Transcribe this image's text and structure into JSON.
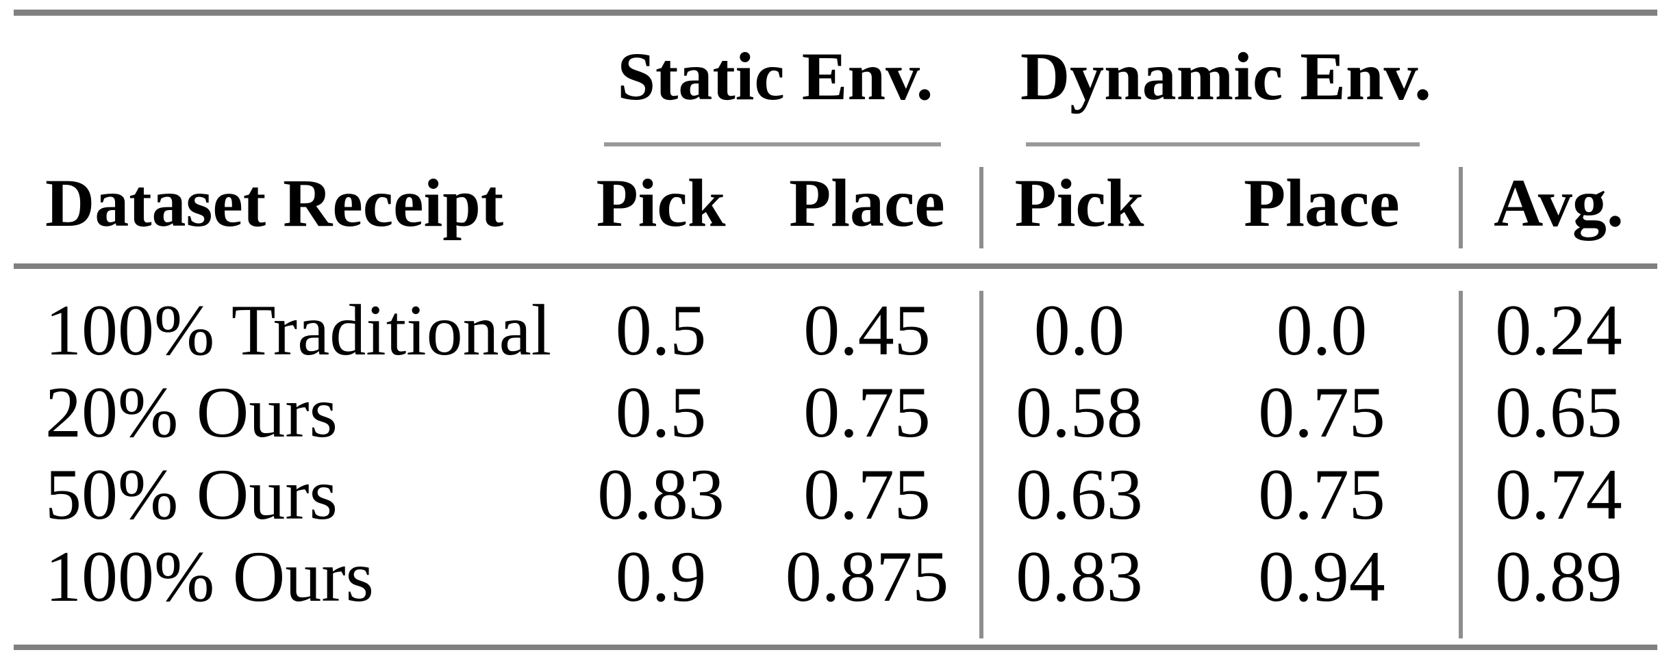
{
  "figure": {
    "background": "#ffffff",
    "rule_color": "#808080",
    "text_color": "#000000"
  },
  "header": {
    "row_label": "Dataset Receipt",
    "groups": [
      {
        "label": "Static Env.",
        "columns": [
          "Pick",
          "Place"
        ]
      },
      {
        "label": "Dynamic Env.",
        "columns": [
          "Pick",
          "Place"
        ]
      }
    ],
    "avg": "Avg."
  },
  "rows": [
    {
      "label": "100% Traditional",
      "static_pick": "0.5",
      "static_place": "0.45",
      "dynamic_pick": "0.0",
      "dynamic_place": "0.0",
      "avg": "0.24"
    },
    {
      "label": "20% Ours",
      "static_pick": "0.5",
      "static_place": "0.75",
      "dynamic_pick": "0.58",
      "dynamic_place": "0.75",
      "avg": "0.65"
    },
    {
      "label": "50% Ours",
      "static_pick": "0.83",
      "static_place": "0.75",
      "dynamic_pick": "0.63",
      "dynamic_place": "0.75",
      "avg": "0.74"
    },
    {
      "label": "100% Ours",
      "static_pick": "0.9",
      "static_place": "0.875",
      "dynamic_pick": "0.83",
      "dynamic_place": "0.94",
      "avg": "0.89"
    }
  ]
}
